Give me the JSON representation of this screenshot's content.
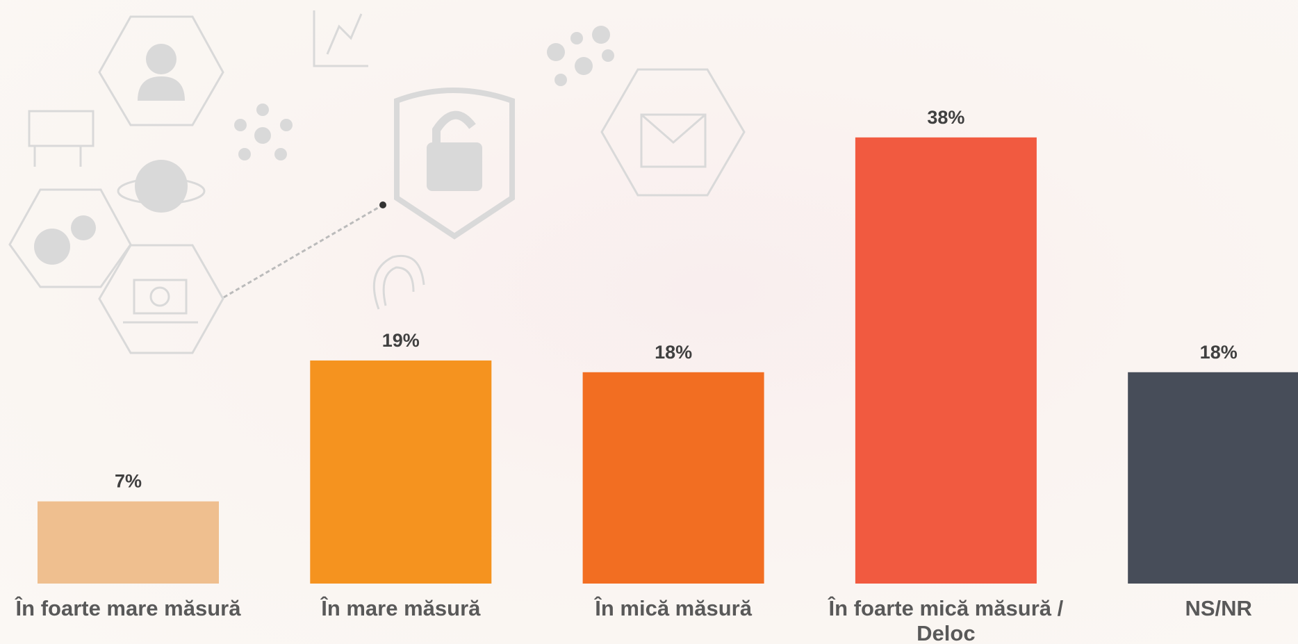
{
  "chart_data": {
    "type": "bar",
    "categories": [
      "În foarte mare măsură",
      "În mare măsură",
      "În mică măsură",
      "În foarte mică măsură / Deloc",
      "NS/NR"
    ],
    "values": [
      7,
      19,
      18,
      38,
      18
    ],
    "value_labels": [
      "7%",
      "19%",
      "18%",
      "38%",
      "18%"
    ],
    "colors": [
      "#efbf8f",
      "#f5931f",
      "#f26e22",
      "#f15a40",
      "#474d59"
    ]
  }
}
